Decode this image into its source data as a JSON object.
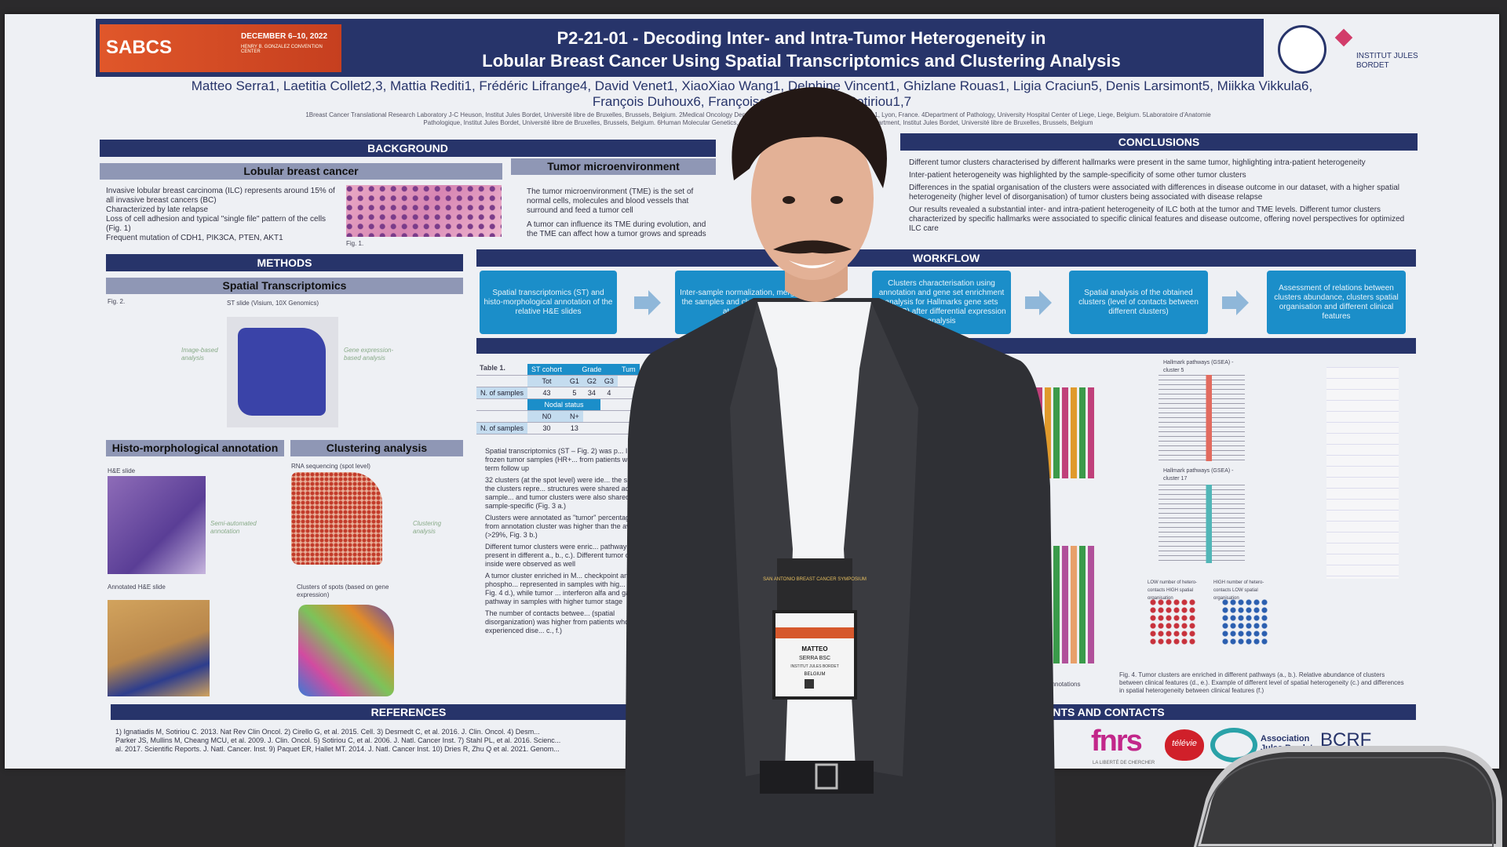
{
  "conference": {
    "name": "SABCS",
    "dates": "DECEMBER 6–10, 2022",
    "venue": "HENRY B. GONZALEZ CONVENTION CENTER"
  },
  "header": {
    "title_line1": "P2-21-01 - Decoding Inter- and Intra-Tumor Heterogeneity in",
    "title_line2": "Lobular Breast Cancer Using Spatial Transcriptomics and Clustering Analysis",
    "institute": "INSTITUT JULES BORDET"
  },
  "authors": [
    "Matteo Serra1, Laetitia Collet2,3, Mattia Rediti1, Frédéric Lifrange4, David Venet1, XiaoXiao Wang1, Delphine Vincent1, Ghizlane Rouas1, Ligia Craciun5, Denis Larsimont5, Miikka Vikkula6,",
    "François Duhoux6, Françoise R... Christos Sotiriou1,7"
  ],
  "affiliations": [
    "1Breast Cancer Translational Research Laboratory J-C Heuson, Institut Jules Bordet, Université libre de Bruxelles, Brussels, Belgium. 2Medical Oncology Department, Centre Léon ... Claude Bernard Lyon 1, Lyon, France. 4Department of Pathology, University Hospital Center of Liege, Liege, Belgium. 5Laboratoire d'Anatomie",
    "Pathologique, Institut Jules Bordet, Université libre de Bruxelles, Brussels, Belgium. 6Human Molecular Genetics, de Duve Institute, Univ... Belgium. 7Oncology department, Institut Jules Bordet, Université libre de Bruxelles, Brussels, Belgium"
  ],
  "background": {
    "heading": "BACKGROUND",
    "lobular": {
      "heading": "Lobular breast cancer",
      "bullets": [
        "Invasive lobular breast carcinoma (ILC) represents around 15% of all invasive breast cancers (BC)",
        "Characterized by late relapse",
        "Loss of cell adhesion and typical \"single file\" pattern of the cells (Fig. 1)",
        "Frequent mutation of CDH1, PIK3CA, PTEN, AKT1"
      ]
    },
    "figure": "Fig. 1.",
    "tme": {
      "heading": "Tumor microenvironment",
      "bullets": [
        "The tumor microenvironment (TME) is the set of normal cells, molecules and blood vessels that surround and feed a tumor cell",
        "A tumor can influence its TME during evolution, and the TME can affect how a tumor grows and spreads"
      ]
    }
  },
  "methods": {
    "heading": "METHODS",
    "st": "Spatial Transcriptomics",
    "fig": "Fig. 2.",
    "st_slide": "ST slide (Visium, 10X Genomics)",
    "image_analysis": "Image-based analysis",
    "gene_analysis": "Gene expression-based analysis",
    "histo": "Histo-morphological annotation",
    "clustering": "Clustering analysis",
    "he_slide": "H&E slide",
    "rna": "RNA sequencing (spot level)",
    "semi": "Semi-automated annotation",
    "clust_an": "Clustering analysis",
    "annotated": "Annotated H&E slide",
    "clusters": "Clusters of spots (based on gene expression)"
  },
  "conclusions": {
    "heading": "CONCLUSIONS",
    "bullets": [
      "Different tumor clusters characterised by different hallmarks were present in the same tumor, highlighting intra-patient heterogeneity",
      "Inter-patient heterogeneity was highlighted by the sample-specificity of some other tumor clusters",
      "Differences in the spatial organisation of the clusters were associated with differences in disease outcome in our dataset, with a higher spatial heterogeneity (higher level of disorganisation) of tumor clusters being associated with disease relapse",
      "Our results revealed a substantial inter- and intra-patient heterogeneity of ILC both at the tumor and TME levels. Different tumor clusters characterized by specific hallmarks were associated to specific clinical features and disease outcome, offering novel perspectives for optimized ILC care"
    ]
  },
  "workflow": {
    "heading": "WORKFLOW",
    "steps": [
      "Spatial transcriptomics (ST) and histo-morphological annotation of the relative H&E slides",
      "Inter-sample normalization, merge of the samples and clustering analysis at spot level",
      "Clusters characterisation using annotation and gene set enrichment analysis for Hallmarks gene sets (MsigDB) after differential expression analysis",
      "Spatial analysis of the obtained clusters (level of contacts between different clusters)",
      "Assessment of relations between clusters abundance, clusters spatial organisation and different clinical features"
    ]
  },
  "table": {
    "title": "Table 1.",
    "rows": [
      [
        "ST cohort",
        "Grade",
        "Tum"
      ],
      [
        "Tot",
        "G1",
        "G2",
        "G3"
      ],
      [
        "N. of samples",
        "43",
        "5",
        "34",
        "4"
      ],
      [
        "Nodal status"
      ],
      [
        "N0",
        "N+"
      ],
      [
        "N. of samples",
        "30",
        "13"
      ]
    ]
  },
  "results": {
    "bullets": [
      "Spatial transcriptomics (ST – Fig. 2) was p... ILC primary frozen tumor samples (HR+... from patients with long term follow up",
      "32 clusters (at the spot level) were ide... the samples. All the clusters repre... structures were shared across sample... and tumor clusters were also shared, ... were sample-specific (Fig. 3 a.)",
      "Clusters were annotated as \"tumor\" percentage of tumor from annotation cluster was higher than the average (>29%, Fig. 3 b.)",
      "Different tumor clusters were enric... pathways and present in different a., b., c.). Different tumor clusters inside were observed as well",
      "A tumor cluster enriched in M... checkpoint and oxidative phospho... represented in samples with hig... (p=0.016, Fig. 4 d.), while tumor ... interferon alfa and gamma pathway in samples with higher tumor stage",
      "The number of contacts betwee... (spatial disorganization) was higher from patients who experienced dise... c., f.)"
    ]
  },
  "fig4": {
    "a": "Hallmark pathways (GSEA) - cluster 5",
    "b": "Hallmark pathways (GSEA) - cluster 17",
    "c_left": "LOW number of hetero-contacts HIGH spatial organisation",
    "c_right": "HIGH number of hetero-contacts LOW spatial organisation",
    "caption": "Fig. 4. Tumor clusters are enriched in different pathways (a., b.). Relative abundance of clusters between clinical features (d., e.). Example of different level of spatial heterogeneity (c.) and differences in spatial heterogeneity between clinical features (f.)",
    "fig3_note": "...age of annotations"
  },
  "references": {
    "heading": "REFERENCES",
    "lines": [
      "1) Ignatiadis M, Sotiriou C. 2013. Nat Rev Clin Oncol. 2) Cirello G, et al. 2015. Cell. 3) Desmedt C, et al. 2016. J. Clin. Oncol. 4) Desm...",
      "Parker JS, Mullins M, Cheang MCU, et al. 2009. J. Clin. Oncol. 5) Sotiriou C, et al. 2006. J. Natl. Cancer Inst. 7) Stahl PL, et al. 2016. Scienc...",
      "al. 2017. Scientific Reports. J. Natl. Cancer. Inst. 9) Paquet ER, Hallet MT. 2014. J. Natl. Cancer Inst. 10) Dries R, Zhu Q et al. 2021. Genom..."
    ]
  },
  "contacts": {
    "heading": "ENTS AND CONTACTS"
  },
  "sponsors": {
    "fnrs": "fnrs",
    "fnrs_tag": "LA LIBERTÉ DE CHERCHER",
    "televie": "télévie",
    "assoc": "Association Jules Bordet",
    "bcrf": "BCRF"
  },
  "badge": {
    "event": "SAN ANTONIO BREAST CANCER SYMPOSIUM",
    "first": "MATTEO",
    "last": "SERRA BSC",
    "org": "INSTITUT JULES BORDET",
    "country": "BELGIUM"
  }
}
